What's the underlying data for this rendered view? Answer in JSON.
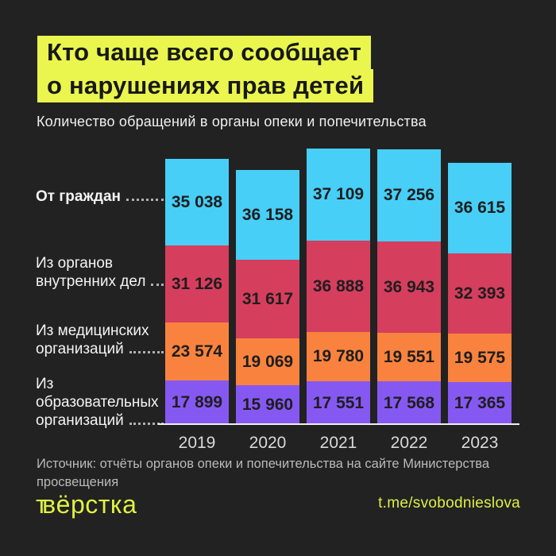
{
  "title": {
    "line1": "Кто чаще всего сообщает",
    "line2": "о нарушениях прав детей"
  },
  "subtitle": "Количество обращений в органы опеки и попечительства",
  "chart_data": {
    "type": "bar",
    "stacked": true,
    "title": "Количество обращений в органы опеки и попечительства",
    "categories": [
      "2019",
      "2020",
      "2021",
      "2022",
      "2023"
    ],
    "series": [
      {
        "name": "От граждан",
        "label_lines": [
          "От граждан"
        ],
        "color": "#47CFF7",
        "values": [
          35038,
          36158,
          37109,
          37256,
          36615
        ]
      },
      {
        "name": "Из органов внутренних дел",
        "label_lines": [
          "Из органов",
          "внутренних дел"
        ],
        "color": "#D63E5E",
        "values": [
          31126,
          31617,
          36888,
          36943,
          32393
        ]
      },
      {
        "name": "Из медицинских организаций",
        "label_lines": [
          "Из медицинских",
          "организаций"
        ],
        "color": "#F9833E",
        "values": [
          23574,
          19069,
          19780,
          19551,
          19575
        ]
      },
      {
        "name": "Из образовательных организаций",
        "label_lines": [
          "Из",
          "образовательных",
          "организаций"
        ],
        "color": "#8658F2",
        "values": [
          17899,
          15960,
          17551,
          17568,
          17365
        ]
      }
    ],
    "value_label_format": "space-thousands",
    "legend_position": "left",
    "grid": false,
    "xlabel": "",
    "ylabel": ""
  },
  "source": "Источник: отчёты органов опеки и попечительства на сайте Министерства просвещения",
  "footer": {
    "logo_prefix": "т",
    "logo_text": "вёрстка",
    "link": "t.me/svobodnieslova"
  },
  "colors": {
    "background": "#222222",
    "title_highlight": "#EAF64E",
    "accent_yellow": "#DFF043",
    "value_text": "#1E1E1E",
    "axis": "#EFEFEF",
    "text_light": "#F4F4F4",
    "text_muted": "#B9B9B9"
  }
}
